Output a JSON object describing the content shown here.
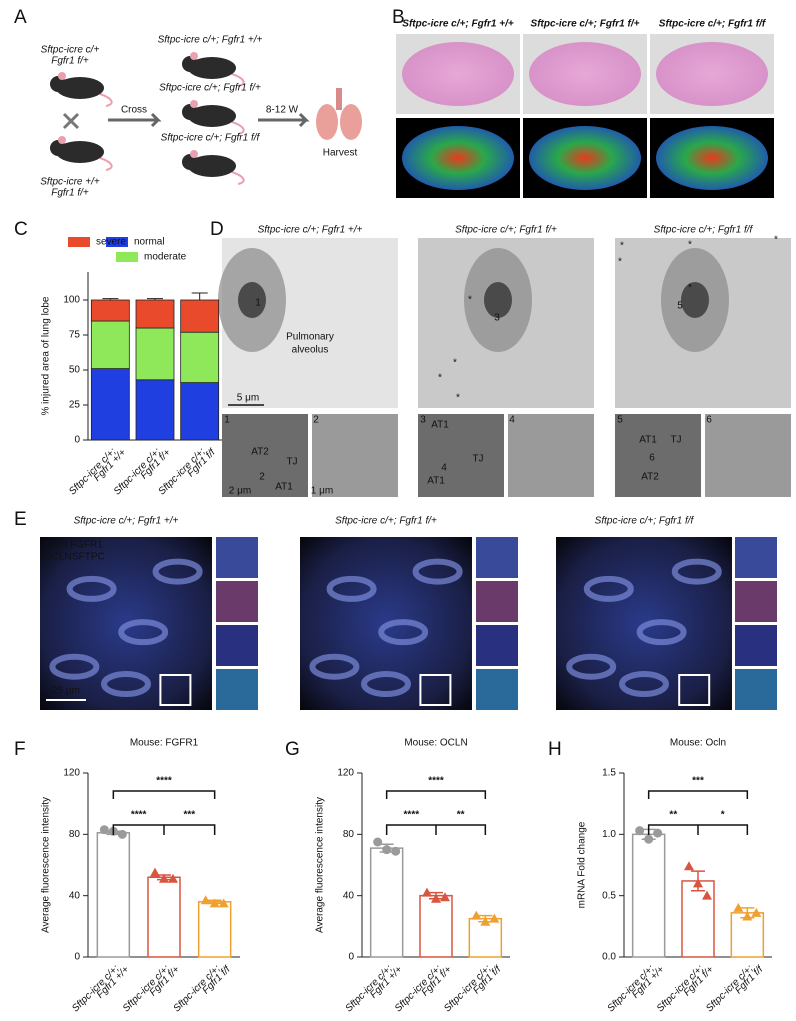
{
  "panel_labels": [
    "A",
    "B",
    "C",
    "D",
    "E",
    "F",
    "G",
    "H"
  ],
  "panel_a": {
    "parent1": [
      "Sftpc-icre c/+",
      "Fgfr1 f/+"
    ],
    "parent2": [
      "Sftpc-icre +/+",
      "Fgfr1 f/+"
    ],
    "cross": "Cross",
    "offspring": [
      "Sftpc-icre c/+; Fgfr1 +/+",
      "Sftpc-icre c/+; Fgfr1 f/+",
      "Sftpc-icre c/+; Fgfr1 f/f"
    ],
    "time": "8-12 W",
    "harvest": "Harvest"
  },
  "panel_b": {
    "titles": [
      "Sftpc-icre c/+; Fgfr1 +/+",
      "Sftpc-icre c/+; Fgfr1 f/+",
      "Sftpc-icre c/+; Fgfr1 f/f"
    ]
  },
  "panel_d": {
    "titles": [
      "Sftpc-icre c/+; Fgfr1 +/+",
      "Sftpc-icre c/+; Fgfr1 f/+",
      "Sftpc-icre c/+; Fgfr1 f/f"
    ],
    "annotations": [
      "1",
      "Pulmonary",
      "alveolus",
      "5 μm",
      "3",
      "5",
      "1",
      "2",
      "AT2",
      "TJ",
      "2",
      "AT1",
      "2 μm",
      "1 μm",
      "3",
      "4",
      "AT1",
      "4",
      "TJ",
      "AT1",
      "5",
      "6",
      "AT1",
      "TJ",
      "6",
      "AT2"
    ],
    "asterisk": "*"
  },
  "panel_e": {
    "titles": [
      "Sftpc-icre c/+; Fgfr1 +/+",
      "Sftpc-icre c/+; Fgfr1 f/+",
      "Sftpc-icre c/+; Fgfr1 f/f"
    ],
    "channels": [
      "DAPI",
      "FGFR1",
      "OCLN",
      "SFTPC"
    ],
    "scale_bar": "25 μm"
  },
  "chart_data": [
    {
      "type": "stacked_bar",
      "ylabel": "% injured area of lung lobe",
      "categories": [
        [
          "Sftpc-icre c/+;",
          "Fgfr1 +/+"
        ],
        [
          "Sftpc-icre c/+;",
          "Fgfr1 f/+"
        ],
        [
          "Sftpc-icre c/+;",
          "Fgfr1 f/f"
        ]
      ],
      "series": [
        {
          "name": "normal",
          "color": "#1f3fe0",
          "values": [
            51,
            43,
            41
          ],
          "errors": [
            2,
            1,
            3
          ]
        },
        {
          "name": "moderate",
          "color": "#8fe85a",
          "values": [
            34,
            37,
            36
          ],
          "errors": [
            1,
            0.5,
            1
          ]
        },
        {
          "name": "severe",
          "color": "#ea4a2c",
          "values": [
            15,
            20,
            23
          ],
          "errors": [
            1,
            1,
            5
          ]
        }
      ],
      "ylim": [
        0,
        120
      ],
      "yticks": [
        0,
        25,
        50,
        75,
        100
      ]
    },
    {
      "type": "bar",
      "title": "Mouse: FGFR1",
      "ylabel": "Average fluorescence intensity",
      "categories": [
        [
          "Sftpc-icre c/+;",
          "Fgfr1 +/+"
        ],
        [
          "Sftpc-icre c/+;",
          "Fgfr1 f/+"
        ],
        [
          "Sftpc-icre c/+;",
          "Fgfr1 f/f"
        ]
      ],
      "values": [
        81,
        52,
        36
      ],
      "errors": [
        1,
        1.5,
        1
      ],
      "points": [
        [
          83,
          82,
          80
        ],
        [
          55,
          51,
          51
        ],
        [
          37,
          35,
          35
        ]
      ],
      "colors": [
        "#9a9a9a",
        "#d9553f",
        "#f0a030"
      ],
      "markers": [
        "circle",
        "triangle",
        "triangle"
      ],
      "significance": [
        "****",
        "****",
        "***"
      ],
      "ylim": [
        0,
        120
      ],
      "yticks": [
        0,
        40,
        80,
        120
      ]
    },
    {
      "type": "bar",
      "title": "Mouse: OCLN",
      "ylabel": "Average fluorescence intensity",
      "categories": [
        [
          "Sftpc-icre c/+;",
          "Fgfr1 +/+"
        ],
        [
          "Sftpc-icre c/+;",
          "Fgfr1 f/+"
        ],
        [
          "Sftpc-icre c/+;",
          "Fgfr1 f/f"
        ]
      ],
      "values": [
        71,
        40,
        25
      ],
      "errors": [
        2.5,
        2,
        2
      ],
      "points": [
        [
          75,
          70,
          69
        ],
        [
          42,
          38,
          39
        ],
        [
          27,
          23,
          25
        ]
      ],
      "colors": [
        "#9a9a9a",
        "#d9553f",
        "#f0a030"
      ],
      "markers": [
        "circle",
        "triangle",
        "triangle"
      ],
      "significance": [
        "****",
        "****",
        "**"
      ],
      "ylim": [
        0,
        120
      ],
      "yticks": [
        0,
        40,
        80,
        120
      ]
    },
    {
      "type": "bar",
      "title": "Mouse: Ocln",
      "ylabel": "mRNA Fold change",
      "categories": [
        [
          "Sftpc-icre c/+;",
          "Fgfr1 +/+"
        ],
        [
          "Sftpc-icre c/+;",
          "Fgfr1 f/+"
        ],
        [
          "Sftpc-icre c/+;",
          "Fgfr1 f/f"
        ]
      ],
      "values": [
        1.0,
        0.62,
        0.36
      ],
      "errors": [
        0.04,
        0.08,
        0.04
      ],
      "points": [
        [
          1.03,
          0.96,
          1.01
        ],
        [
          0.74,
          0.6,
          0.5
        ],
        [
          0.4,
          0.33,
          0.36
        ]
      ],
      "colors": [
        "#9a9a9a",
        "#d9553f",
        "#f0a030"
      ],
      "markers": [
        "circle",
        "triangle",
        "triangle"
      ],
      "significance": [
        "***",
        "**",
        "*"
      ],
      "ylim": [
        0,
        1.5
      ],
      "yticks": [
        {
          "value": 0,
          "label": "0.0"
        },
        0.5,
        {
          "value": 1,
          "label": "1.0"
        },
        1.5
      ]
    }
  ]
}
